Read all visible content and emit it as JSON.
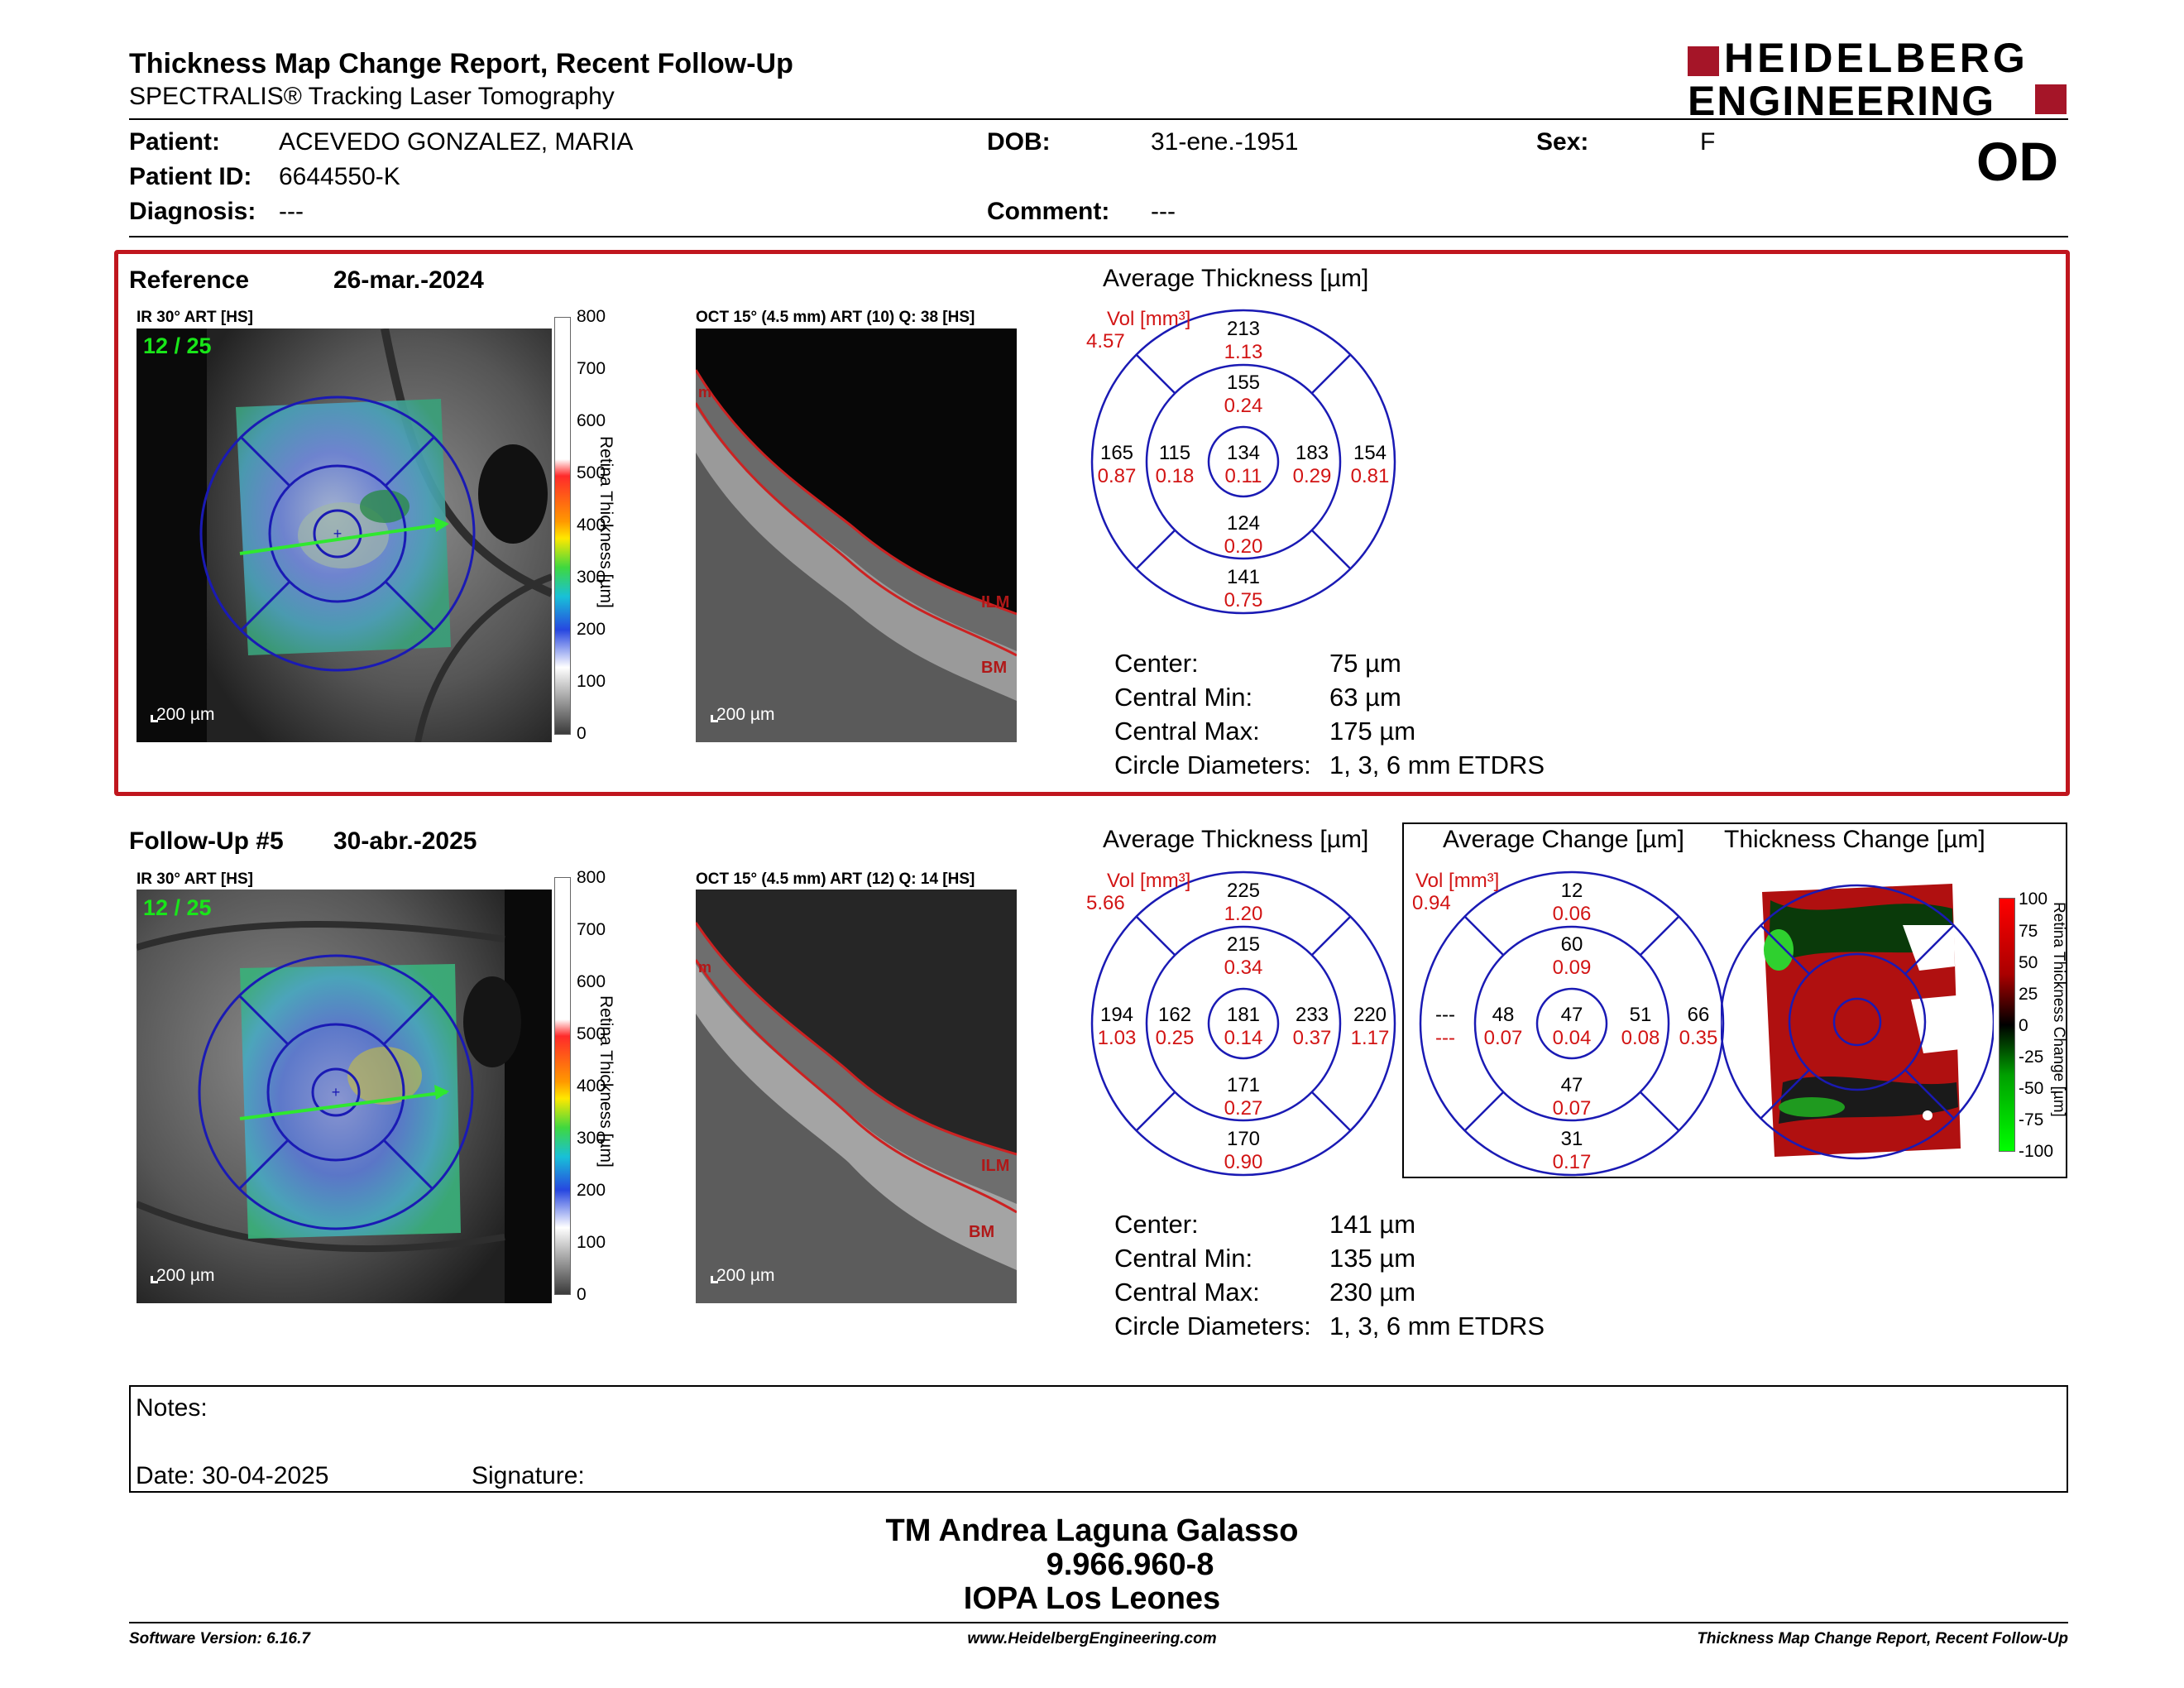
{
  "header": {
    "title": "Thickness Map Change Report, Recent Follow-Up",
    "subtitle": "SPECTRALIS® Tracking Laser Tomography",
    "logo_line1": "HEIDELBERG",
    "logo_line2": "ENGINEERING",
    "eye": "OD"
  },
  "patient": {
    "name_label": "Patient:",
    "name": "ACEVEDO GONZALEZ, MARIA",
    "id_label": "Patient ID:",
    "id": "6644550-K",
    "diagnosis_label": "Diagnosis:",
    "diagnosis": "---",
    "dob_label": "DOB:",
    "dob": "31-ene.-1951",
    "comment_label": "Comment:",
    "comment": "---",
    "sex_label": "Sex:",
    "sex": "F"
  },
  "reference": {
    "label": "Reference",
    "date": "26-mar.-2024",
    "ir_title": "IR 30° ART [HS]",
    "ir_frac": "12 / 25",
    "ir_scale": "200 µm",
    "oct_title": "OCT 15° (4.5 mm) ART (10) Q: 38 [HS]",
    "oct_scale": "200 µm",
    "colorbar_ticks": [
      "800",
      "700",
      "600",
      "500",
      "400",
      "300",
      "200",
      "100",
      "0"
    ],
    "colorbar_label": "Retina Thickness [µm]",
    "avg_title": "Average Thickness [µm]",
    "etdrs": {
      "vol_label": "Vol [mm³]",
      "vol": "4.57",
      "center_t": "134",
      "center_v": "0.11",
      "inner_sup_t": "155",
      "inner_sup_v": "0.24",
      "inner_nas_t": "183",
      "inner_nas_v": "0.29",
      "inner_inf_t": "124",
      "inner_inf_v": "0.20",
      "inner_tem_t": "115",
      "inner_tem_v": "0.18",
      "outer_sup_t": "213",
      "outer_sup_v": "1.13",
      "outer_nas_t": "154",
      "outer_nas_v": "0.81",
      "outer_inf_t": "141",
      "outer_inf_v": "0.75",
      "outer_tem_t": "165",
      "outer_tem_v": "0.87"
    },
    "stats": {
      "center_label": "Center:",
      "center": "75 µm",
      "min_label": "Central Min:",
      "min": "63 µm",
      "max_label": "Central Max:",
      "max": "175 µm",
      "diam_label": "Circle Diameters:",
      "diam": "1, 3, 6 mm ETDRS"
    }
  },
  "followup": {
    "label": "Follow-Up #5",
    "date": "30-abr.-2025",
    "ir_title": "IR 30° ART [HS]",
    "ir_frac": "12 / 25",
    "ir_scale": "200 µm",
    "oct_title": "OCT 15° (4.5 mm) ART (12) Q: 14 [HS]",
    "oct_scale": "200 µm",
    "colorbar_ticks": [
      "800",
      "700",
      "600",
      "500",
      "400",
      "300",
      "200",
      "100",
      "0"
    ],
    "colorbar_label": "Retina Thickness [µm]",
    "avg_title": "Average Thickness [µm]",
    "etdrs": {
      "vol_label": "Vol [mm³]",
      "vol": "5.66",
      "center_t": "181",
      "center_v": "0.14",
      "inner_sup_t": "215",
      "inner_sup_v": "0.34",
      "inner_nas_t": "233",
      "inner_nas_v": "0.37",
      "inner_inf_t": "171",
      "inner_inf_v": "0.27",
      "inner_tem_t": "162",
      "inner_tem_v": "0.25",
      "outer_sup_t": "225",
      "outer_sup_v": "1.20",
      "outer_nas_t": "220",
      "outer_nas_v": "1.17",
      "outer_inf_t": "170",
      "outer_inf_v": "0.90",
      "outer_tem_t": "194",
      "outer_tem_v": "1.03"
    },
    "change_title": "Average Change [µm]",
    "change": {
      "vol_label": "Vol [mm³]",
      "vol": "0.94",
      "center_t": "47",
      "center_v": "0.04",
      "inner_sup_t": "60",
      "inner_sup_v": "0.09",
      "inner_nas_t": "51",
      "inner_nas_v": "0.08",
      "inner_inf_t": "47",
      "inner_inf_v": "0.07",
      "inner_tem_t": "48",
      "inner_tem_v": "0.07",
      "outer_sup_t": "12",
      "outer_sup_v": "0.06",
      "outer_nas_t": "66",
      "outer_nas_v": "0.35",
      "outer_inf_t": "31",
      "outer_inf_v": "0.17",
      "outer_tem_t": "---",
      "outer_tem_v": "---"
    },
    "thick_change_title": "Thickness Change [µm]",
    "change_ticks": [
      "100",
      "75",
      "50",
      "25",
      "0",
      "-25",
      "-50",
      "-75",
      "-100"
    ],
    "change_bar_label": "Retina Thickness Change [µm]",
    "stats": {
      "center_label": "Center:",
      "center": "141 µm",
      "min_label": "Central Min:",
      "min": "135 µm",
      "max_label": "Central Max:",
      "max": "230 µm",
      "diam_label": "Circle Diameters:",
      "diam": "1, 3, 6 mm ETDRS"
    }
  },
  "notes": {
    "label": "Notes:",
    "date_label": "Date: 30-04-2025",
    "signature_label": "Signature:"
  },
  "signer": {
    "name": "TM Andrea Laguna Galasso",
    "id": "9.966.960-8",
    "org": "IOPA Los Leones"
  },
  "footer": {
    "version": "Software Version: 6.16.7",
    "url": "www.HeidelbergEngineering.com",
    "report": "Thickness Map Change Report, Recent Follow-Up"
  },
  "colors": {
    "accent_red": "#c0161e",
    "etdrs_blue": "#1a1ab4",
    "value_red": "#d21414"
  }
}
